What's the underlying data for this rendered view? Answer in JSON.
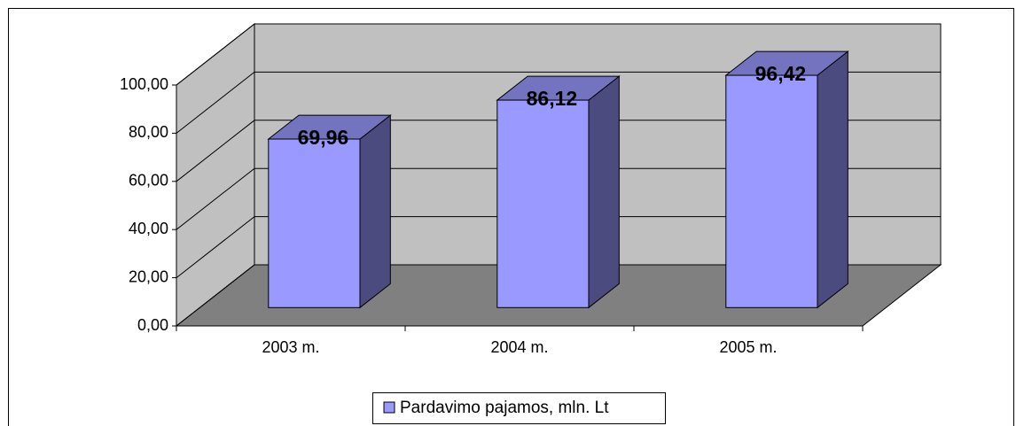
{
  "chart_data": {
    "type": "bar3d",
    "categories": [
      "2003 m.",
      "2004 m.",
      "2005 m."
    ],
    "series": [
      {
        "name": "Pardavimo pajamos, mln. Lt",
        "color": "#9999ff",
        "values": [
          69.96,
          86.12,
          96.42
        ],
        "value_labels": [
          "69,96",
          "86,12",
          "96,42"
        ]
      }
    ],
    "ylim": [
      0,
      100
    ],
    "yticks": [
      {
        "value": 0,
        "label": "0,00"
      },
      {
        "value": 20,
        "label": "20,00"
      },
      {
        "value": 40,
        "label": "40,00"
      },
      {
        "value": 60,
        "label": "60,00"
      },
      {
        "value": 80,
        "label": "80,00"
      },
      {
        "value": 100,
        "label": "100,00"
      }
    ],
    "grid": true,
    "legend": "bottom"
  }
}
